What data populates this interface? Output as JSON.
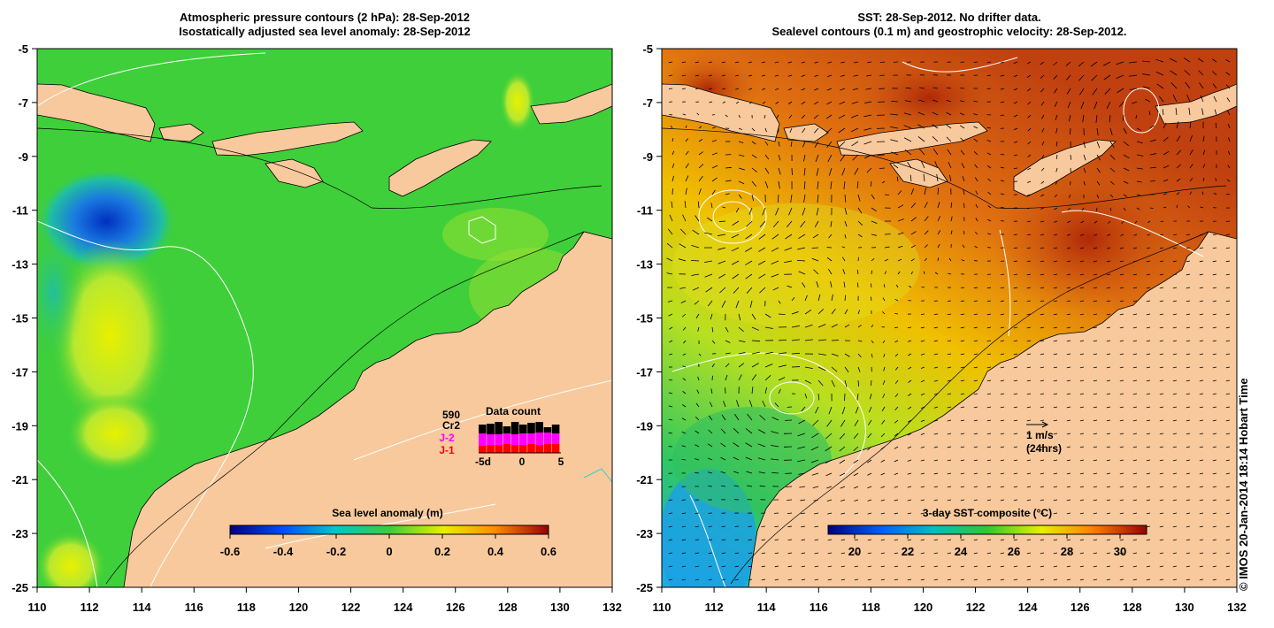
{
  "left_panel": {
    "title_line1": "Atmospheric pressure contours (2 hPa): 28-Sep-2012",
    "title_line2": "Isostatically adjusted sea level anomaly: 28-Sep-2012",
    "colorbar": {
      "label": "Sea level anomaly (m)",
      "range": [
        -0.6,
        0.6
      ],
      "ticks": [
        "-0.6",
        "-0.4",
        "-0.2",
        "0",
        "0.2",
        "0.4",
        "0.6"
      ]
    },
    "data_count_inset": {
      "title": "Data count",
      "total": "590",
      "missions": [
        "Cr2",
        "J-2",
        "J-1"
      ],
      "mission_colors": [
        "#000000",
        "#ff00ff",
        "#ff0000"
      ],
      "x_ticks": [
        "-5d",
        "0",
        "5"
      ]
    }
  },
  "right_panel": {
    "title_line1": "SST: 28-Sep-2012. No drifter data.",
    "title_line2": "Sealevel contours (0.1 m) and geostrophic velocity: 28-Sep-2012.",
    "colorbar": {
      "label": "3-day SST composite (°C)",
      "range": [
        19,
        31
      ],
      "ticks": [
        "20",
        "22",
        "24",
        "26",
        "28",
        "30"
      ]
    },
    "velocity_legend": {
      "label": "1 m/s",
      "sublabel": "(24hrs)"
    }
  },
  "map_extent": {
    "lon_range": [
      110,
      132
    ],
    "lat_range": [
      -25,
      -5
    ]
  },
  "axes": {
    "lat_ticks": [
      "-5",
      "-7",
      "-9",
      "-11",
      "-13",
      "-15",
      "-17",
      "-19",
      "-21",
      "-23",
      "-25"
    ],
    "lon_ticks": [
      "110",
      "112",
      "114",
      "116",
      "118",
      "120",
      "122",
      "124",
      "126",
      "128",
      "130",
      "132"
    ]
  },
  "colors": {
    "land": "#f8c99c",
    "slanomaly_base": "#3fcf3a",
    "sst_warm": "#d05010"
  },
  "credit": "© IMOS 20-Jan-2014 18:14 Hobart Time"
}
